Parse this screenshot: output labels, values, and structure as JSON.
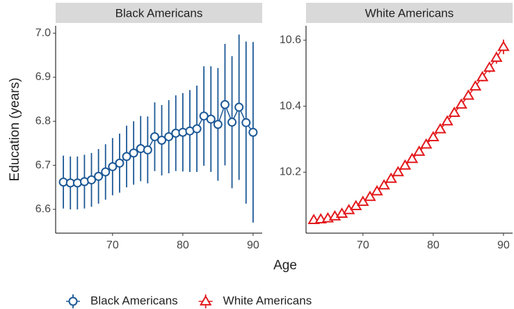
{
  "chart_data": [
    {
      "type": "line",
      "ylabel": "Education (years)",
      "xlabel": "Age",
      "x": [
        63,
        64,
        65,
        66,
        67,
        68,
        69,
        70,
        71,
        72,
        73,
        74,
        75,
        76,
        77,
        78,
        79,
        80,
        81,
        82,
        83,
        84,
        85,
        86,
        87,
        88,
        89,
        90
      ],
      "xlim": [
        61.9,
        91.3
      ],
      "xticks": [
        70,
        80,
        90
      ],
      "ylim": [
        6.546,
        7.017
      ],
      "yticks": [
        6.6,
        6.7,
        6.8,
        6.9,
        {
          "value": 7,
          "label": "7.0"
        }
      ],
      "series": [
        {
          "name": "Black Americans",
          "color": "#1c5896",
          "marker": "circle",
          "values": [
            6.662,
            6.66,
            6.66,
            6.663,
            6.667,
            6.675,
            6.685,
            6.697,
            6.705,
            6.72,
            6.728,
            6.738,
            6.735,
            6.765,
            6.757,
            6.765,
            6.773,
            6.775,
            6.778,
            6.783,
            6.812,
            6.805,
            6.793,
            6.838,
            6.798,
            6.832,
            6.797,
            6.775
          ],
          "errors": [
            0.06,
            0.06,
            0.06,
            0.061,
            0.061,
            0.062,
            0.063,
            0.065,
            0.067,
            0.07,
            0.072,
            0.074,
            0.076,
            0.078,
            0.08,
            0.083,
            0.086,
            0.089,
            0.093,
            0.098,
            0.113,
            0.12,
            0.128,
            0.138,
            0.15,
            0.165,
            0.184,
            0.205
          ]
        }
      ]
    },
    {
      "type": "line",
      "x": [
        63,
        64,
        65,
        66,
        67,
        68,
        69,
        70,
        71,
        72,
        73,
        74,
        75,
        76,
        77,
        78,
        79,
        80,
        81,
        82,
        83,
        84,
        85,
        86,
        87,
        88,
        89,
        90
      ],
      "xlim": [
        61.9,
        91.3
      ],
      "xticks": [
        70,
        80,
        90
      ],
      "ylim": [
        10.015,
        10.644
      ],
      "yticks": [
        10.2,
        10.4,
        10.6
      ],
      "series": [
        {
          "name": "White Americans",
          "color": "#e3191c",
          "marker": "triangle",
          "values": [
            10.055,
            10.057,
            10.06,
            10.066,
            10.074,
            10.085,
            10.097,
            10.11,
            10.125,
            10.142,
            10.16,
            10.18,
            10.2,
            10.22,
            10.24,
            10.262,
            10.284,
            10.306,
            10.33,
            10.354,
            10.38,
            10.405,
            10.432,
            10.46,
            10.488,
            10.517,
            10.547,
            10.58
          ],
          "errors": [
            0.004,
            0.004,
            0.004,
            0.004,
            0.004,
            0.004,
            0.004,
            0.004,
            0.004,
            0.004,
            0.004,
            0.005,
            0.005,
            0.005,
            0.005,
            0.006,
            0.006,
            0.006,
            0.007,
            0.007,
            0.008,
            0.009,
            0.01,
            0.011,
            0.013,
            0.015,
            0.018,
            0.022
          ]
        }
      ]
    }
  ]
}
